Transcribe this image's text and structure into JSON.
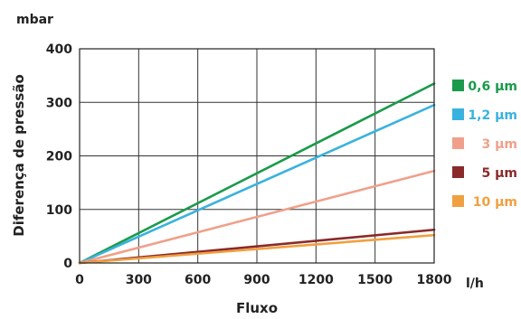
{
  "chart_data": {
    "type": "line",
    "title": "",
    "xlabel": "Fluxo",
    "ylabel": "Diferença de pressão",
    "x_unit": "l/h",
    "y_unit": "mbar",
    "xlim": [
      0,
      1800
    ],
    "ylim": [
      0,
      400
    ],
    "x_ticks": [
      "0",
      "300",
      "600",
      "900",
      "1200",
      "1500",
      "1800"
    ],
    "y_ticks": [
      "0",
      "100",
      "200",
      "300",
      "400"
    ],
    "grid": true,
    "legend_position": "right",
    "series": [
      {
        "name": "0,6 µm",
        "color": "#1a9a4a",
        "x": [
          0,
          1800
        ],
        "y": [
          0,
          335
        ]
      },
      {
        "name": "1,2 µm",
        "color": "#3ab2df",
        "x": [
          0,
          1800
        ],
        "y": [
          0,
          295
        ]
      },
      {
        "name": "3 µm",
        "color": "#f0a08a",
        "x": [
          0,
          1800
        ],
        "y": [
          0,
          172
        ]
      },
      {
        "name": "5 µm",
        "color": "#8b2a2a",
        "x": [
          0,
          1800
        ],
        "y": [
          0,
          62
        ]
      },
      {
        "name": "10 µm",
        "color": "#f0a040",
        "x": [
          0,
          1800
        ],
        "y": [
          0,
          52
        ]
      }
    ]
  }
}
